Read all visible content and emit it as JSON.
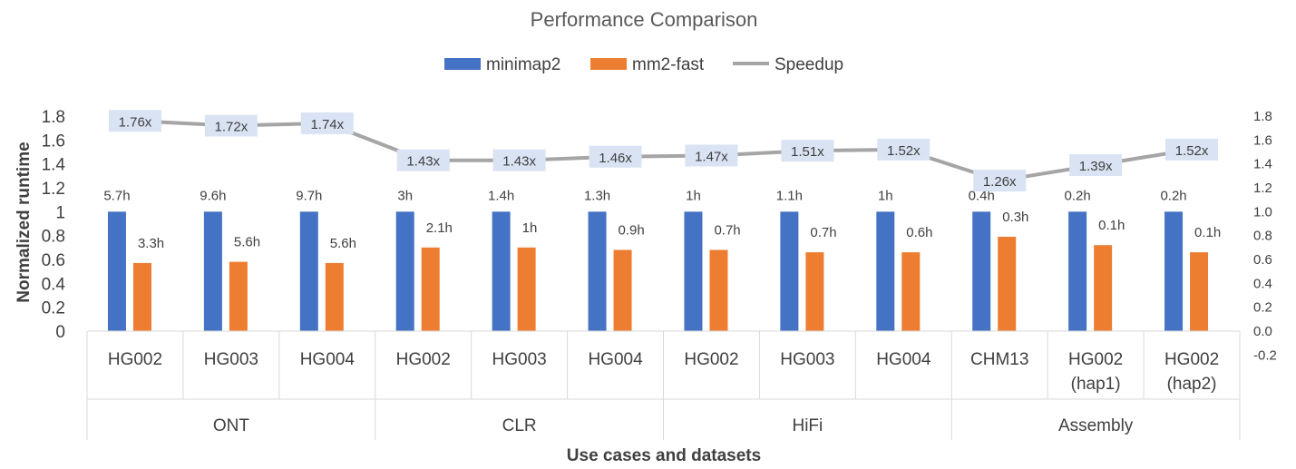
{
  "chart_data": {
    "type": "bar",
    "title": "Performance Comparison",
    "xlabel": "Use cases and datasets",
    "ylabel": "Normalized runtime",
    "ylim": [
      0,
      1.8
    ],
    "y_ticks": [
      "0",
      "0.2",
      "0.4",
      "0.6",
      "0.8",
      "1",
      "1.2",
      "1.4",
      "1.6",
      "1.8"
    ],
    "y2lim": [
      -0.2,
      1.8
    ],
    "y2_ticks": [
      "-0.2",
      "0.0",
      "0.2",
      "0.4",
      "0.6",
      "0.8",
      "1.0",
      "1.2",
      "1.4",
      "1.6",
      "1.8"
    ],
    "grid": false,
    "legend_position": "top",
    "categories": [
      {
        "label": [
          "HG002"
        ],
        "group": 0
      },
      {
        "label": [
          "HG003"
        ],
        "group": 0
      },
      {
        "label": [
          "HG004"
        ],
        "group": 0
      },
      {
        "label": [
          "HG002"
        ],
        "group": 1
      },
      {
        "label": [
          "HG003"
        ],
        "group": 1
      },
      {
        "label": [
          "HG004"
        ],
        "group": 1
      },
      {
        "label": [
          "HG002"
        ],
        "group": 2
      },
      {
        "label": [
          "HG003"
        ],
        "group": 2
      },
      {
        "label": [
          "HG004"
        ],
        "group": 2
      },
      {
        "label": [
          "CHM13"
        ],
        "group": 3
      },
      {
        "label": [
          "HG002",
          "(hap1)"
        ],
        "group": 3
      },
      {
        "label": [
          "HG002",
          "(hap2)"
        ],
        "group": 3
      }
    ],
    "groups": [
      "ONT",
      "CLR",
      "HiFi",
      "Assembly"
    ],
    "series": [
      {
        "name": "minimap2",
        "type": "bar",
        "color": "#4472C4",
        "values": [
          1,
          1,
          1,
          1,
          1,
          1,
          1,
          1,
          1,
          1,
          1,
          1
        ],
        "labels": [
          "5.7h",
          "9.6h",
          "9.7h",
          "3h",
          "1.4h",
          "1.3h",
          "1h",
          "1.1h",
          "1h",
          "0.4h",
          "0.2h",
          "0.2h"
        ]
      },
      {
        "name": "mm2-fast",
        "type": "bar",
        "color": "#ED7D31",
        "values": [
          0.57,
          0.58,
          0.57,
          0.7,
          0.7,
          0.68,
          0.68,
          0.66,
          0.66,
          0.79,
          0.72,
          0.66
        ],
        "labels": [
          "3.3h",
          "5.6h",
          "5.6h",
          "2.1h",
          "1h",
          "0.9h",
          "0.7h",
          "0.7h",
          "0.6h",
          "0.3h",
          "0.1h",
          "0.1h"
        ]
      },
      {
        "name": "Speedup",
        "type": "line",
        "axis": "secondary",
        "color": "#A5A5A5",
        "values": [
          1.76,
          1.72,
          1.74,
          1.43,
          1.43,
          1.46,
          1.47,
          1.51,
          1.52,
          1.26,
          1.39,
          1.52
        ],
        "labels": [
          "1.76x",
          "1.72x",
          "1.74x",
          "1.43x",
          "1.43x",
          "1.46x",
          "1.47x",
          "1.51x",
          "1.52x",
          "1.26x",
          "1.39x",
          "1.52x"
        ]
      }
    ],
    "label_box_color": "#DAE3F3"
  }
}
